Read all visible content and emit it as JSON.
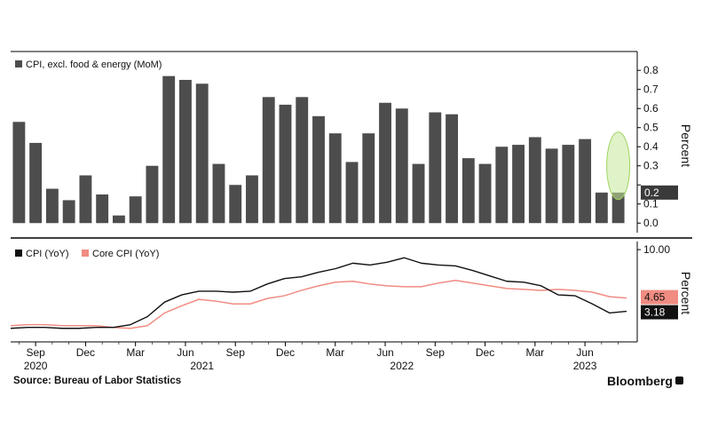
{
  "chart_data": [
    {
      "type": "bar",
      "series": [
        {
          "name": "CPI, excl. food & energy (MoM)",
          "color": "#4d4d4d",
          "values": [
            0.53,
            0.42,
            0.18,
            0.12,
            0.25,
            0.15,
            0.04,
            0.14,
            0.3,
            0.77,
            0.75,
            0.73,
            0.31,
            0.2,
            0.25,
            0.66,
            0.62,
            0.66,
            0.56,
            0.47,
            0.32,
            0.47,
            0.63,
            0.6,
            0.31,
            0.58,
            0.57,
            0.34,
            0.31,
            0.4,
            0.41,
            0.45,
            0.39,
            0.41,
            0.44,
            0.16,
            0.16
          ]
        }
      ],
      "ylim": [
        -0.05,
        0.88
      ],
      "yticks": [
        "0.0",
        "0.1",
        "0.2",
        "0.3",
        "0.4",
        "0.5",
        "0.6",
        "0.7",
        "0.8"
      ],
      "ylabel": "Percent",
      "last_value_label": "0.2",
      "highlight_color": "#c6e89a",
      "legend_position": "top-left",
      "grid": false
    },
    {
      "type": "line",
      "series": [
        {
          "name": "CPI (YoY)",
          "color": "#111111",
          "values": [
            1.3,
            1.4,
            1.4,
            1.3,
            1.3,
            1.4,
            1.4,
            1.7,
            2.6,
            4.2,
            5.0,
            5.4,
            5.4,
            5.3,
            5.4,
            6.2,
            6.8,
            7.0,
            7.5,
            7.9,
            8.5,
            8.3,
            8.6,
            9.1,
            8.5,
            8.3,
            8.2,
            7.7,
            7.1,
            6.5,
            6.4,
            6.0,
            5.0,
            4.9,
            4.0,
            3.0,
            3.18
          ]
        },
        {
          "name": "Core CPI (YoY)",
          "color": "#f08c82",
          "values": [
            1.6,
            1.7,
            1.7,
            1.6,
            1.6,
            1.6,
            1.4,
            1.3,
            1.6,
            3.0,
            3.8,
            4.5,
            4.3,
            4.0,
            4.0,
            4.6,
            4.9,
            5.5,
            6.0,
            6.4,
            6.5,
            6.2,
            6.0,
            5.9,
            5.9,
            6.3,
            6.6,
            6.3,
            6.0,
            5.7,
            5.6,
            5.5,
            5.6,
            5.5,
            5.3,
            4.8,
            4.65
          ]
        }
      ],
      "ylim": [
        0,
        10.5
      ],
      "yticks": [
        "10.00"
      ],
      "ylabel": "Percent",
      "last_value_labels": [
        "3.18",
        "4.65"
      ],
      "legend_position": "top-left",
      "grid": false
    }
  ],
  "x_axis": {
    "month_labels": [
      "Sep",
      "Dec",
      "Mar",
      "Jun",
      "Sep",
      "Dec",
      "Mar",
      "Jun",
      "Sep",
      "Dec",
      "Mar",
      "Jun"
    ],
    "year_labels": [
      "2020",
      "2021",
      "2022",
      "2023"
    ]
  },
  "source": "Source: Bureau of Labor Statistics",
  "brand": "Bloomberg"
}
